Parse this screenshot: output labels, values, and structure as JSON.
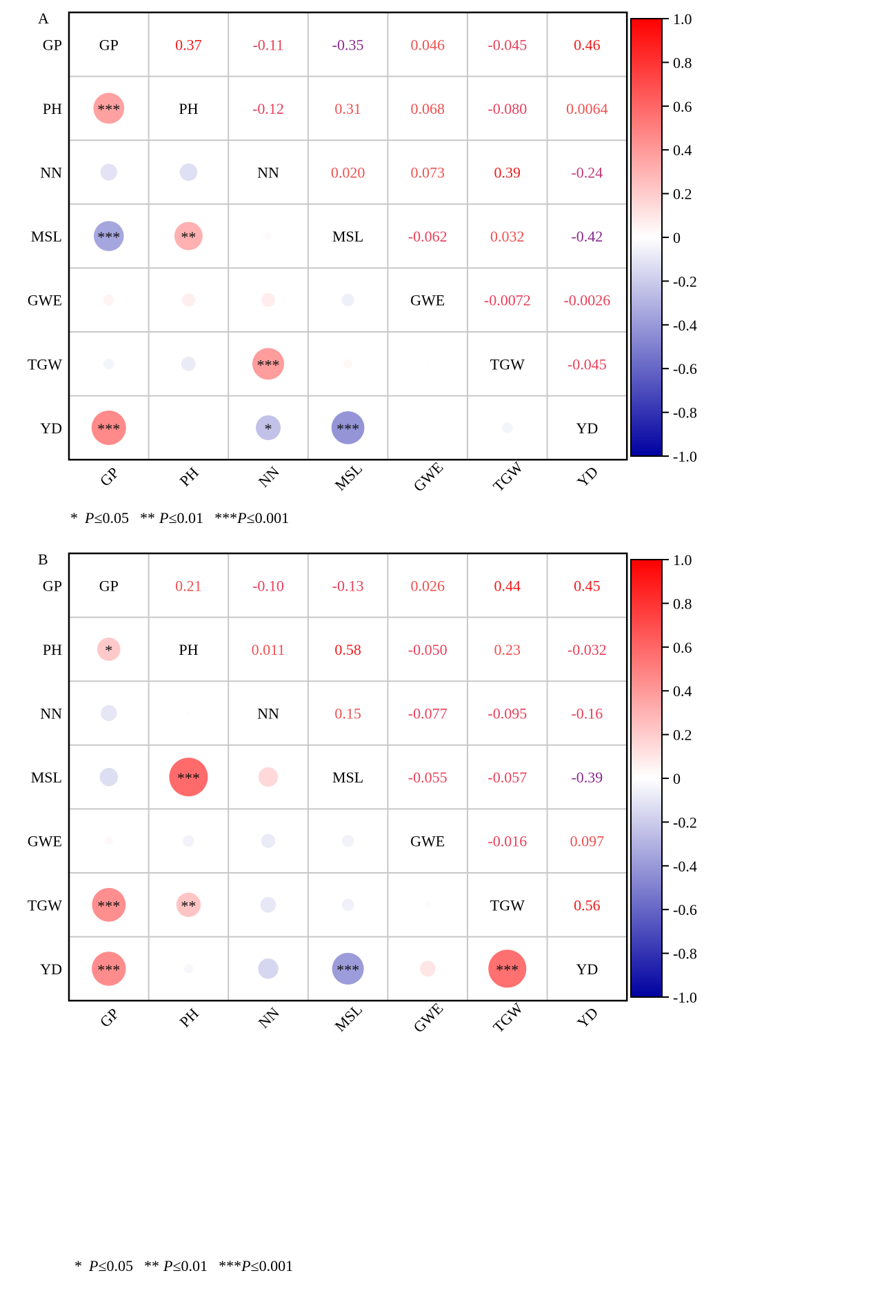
{
  "panels": [
    {
      "label": "A",
      "footnote": {
        "star1": "*",
        "p1": "P",
        "t1": "≤0.05",
        "star2": "**",
        "p2": "P",
        "t2": "≤0.01",
        "star3": "***",
        "p3": "P",
        "t3": "≤0.001"
      }
    },
    {
      "label": "B",
      "footnote": {
        "star1": "*",
        "p1": "P",
        "t1": "≤0.05",
        "star2": "**",
        "p2": "P",
        "t2": "≤0.01",
        "star3": "***",
        "p3": "P",
        "t3": "≤0.001"
      }
    }
  ],
  "colors": {
    "positive": "#ff0000",
    "negative": "#0000a0",
    "zero": "#ffffff",
    "grid": "#c8c8c8",
    "frame": "#000000"
  },
  "chart_data": [
    {
      "type": "heatmap",
      "title": "A",
      "variables": [
        "GP",
        "PH",
        "NN",
        "MSL",
        "GWE",
        "TGW",
        "YD"
      ],
      "colorbar": {
        "range": [
          -1.0,
          1.0
        ],
        "ticks": [
          "1.0",
          "0.8",
          "0.6",
          "0.4",
          "0.2",
          "0",
          "-0.2",
          "-0.4",
          "-0.6",
          "-0.8",
          "-1.0"
        ]
      },
      "upper_labels": [
        [
          "",
          "0.37",
          "-0.11",
          "-0.35",
          "0.046",
          "-0.045",
          "0.46"
        ],
        [
          "",
          "",
          "-0.12",
          "0.31",
          "0.068",
          "-0.080",
          "0.0064"
        ],
        [
          "",
          "",
          "",
          "0.020",
          "0.073",
          "0.39",
          "-0.24"
        ],
        [
          "",
          "",
          "",
          "",
          "-0.062",
          "0.032",
          "-0.42"
        ],
        [
          "",
          "",
          "",
          "",
          "",
          "-0.0072",
          "-0.0026"
        ],
        [
          "",
          "",
          "",
          "",
          "",
          "",
          "-0.045"
        ],
        [
          "",
          "",
          "",
          "",
          "",
          "",
          ""
        ]
      ],
      "lower_circles": [
        {
          "row": 1,
          "col": 0,
          "r": 0.37,
          "sig": "***"
        },
        {
          "row": 2,
          "col": 0,
          "r": -0.11,
          "sig": ""
        },
        {
          "row": 2,
          "col": 1,
          "r": -0.12,
          "sig": ""
        },
        {
          "row": 3,
          "col": 0,
          "r": -0.35,
          "sig": "***"
        },
        {
          "row": 3,
          "col": 1,
          "r": 0.31,
          "sig": "**"
        },
        {
          "row": 3,
          "col": 2,
          "r": 0.02,
          "sig": ""
        },
        {
          "row": 4,
          "col": 0,
          "r": 0.046,
          "sig": ""
        },
        {
          "row": 4,
          "col": 1,
          "r": 0.068,
          "sig": ""
        },
        {
          "row": 4,
          "col": 2,
          "r": 0.073,
          "sig": ""
        },
        {
          "row": 4,
          "col": 3,
          "r": -0.062,
          "sig": ""
        },
        {
          "row": 5,
          "col": 0,
          "r": -0.045,
          "sig": ""
        },
        {
          "row": 5,
          "col": 1,
          "r": -0.08,
          "sig": ""
        },
        {
          "row": 5,
          "col": 2,
          "r": 0.39,
          "sig": "***"
        },
        {
          "row": 5,
          "col": 3,
          "r": 0.032,
          "sig": ""
        },
        {
          "row": 5,
          "col": 4,
          "r": -0.0072,
          "sig": ""
        },
        {
          "row": 6,
          "col": 0,
          "r": 0.46,
          "sig": "***"
        },
        {
          "row": 6,
          "col": 1,
          "r": 0.0064,
          "sig": ""
        },
        {
          "row": 6,
          "col": 2,
          "r": -0.24,
          "sig": "*"
        },
        {
          "row": 6,
          "col": 3,
          "r": -0.42,
          "sig": "***"
        },
        {
          "row": 6,
          "col": 4,
          "r": -0.0026,
          "sig": ""
        },
        {
          "row": 6,
          "col": 5,
          "r": -0.045,
          "sig": ""
        }
      ]
    },
    {
      "type": "heatmap",
      "title": "B",
      "variables": [
        "GP",
        "PH",
        "NN",
        "MSL",
        "GWE",
        "TGW",
        "YD"
      ],
      "colorbar": {
        "range": [
          -1.0,
          1.0
        ],
        "ticks": [
          "1.0",
          "0.8",
          "0.6",
          "0.4",
          "0.2",
          "0",
          "-0.2",
          "-0.4",
          "-0.6",
          "-0.8",
          "-1.0"
        ]
      },
      "upper_labels": [
        [
          "",
          "0.21",
          "-0.10",
          "-0.13",
          "0.026",
          "0.44",
          "0.45"
        ],
        [
          "",
          "",
          "0.011",
          "0.58",
          "-0.050",
          "0.23",
          "-0.032"
        ],
        [
          "",
          "",
          "",
          "0.15",
          "-0.077",
          "-0.095",
          "-0.16"
        ],
        [
          "",
          "",
          "",
          "",
          "-0.055",
          "-0.057",
          "-0.39"
        ],
        [
          "",
          "",
          "",
          "",
          "",
          "-0.016",
          "0.097"
        ],
        [
          "",
          "",
          "",
          "",
          "",
          "",
          "0.56"
        ],
        [
          "",
          "",
          "",
          "",
          "",
          "",
          ""
        ]
      ],
      "lower_circles": [
        {
          "row": 1,
          "col": 0,
          "r": 0.21,
          "sig": "*"
        },
        {
          "row": 2,
          "col": 0,
          "r": -0.1,
          "sig": ""
        },
        {
          "row": 2,
          "col": 1,
          "r": 0.011,
          "sig": ""
        },
        {
          "row": 3,
          "col": 0,
          "r": -0.13,
          "sig": ""
        },
        {
          "row": 3,
          "col": 1,
          "r": 0.58,
          "sig": "***"
        },
        {
          "row": 3,
          "col": 2,
          "r": 0.15,
          "sig": ""
        },
        {
          "row": 4,
          "col": 0,
          "r": 0.026,
          "sig": ""
        },
        {
          "row": 4,
          "col": 1,
          "r": -0.05,
          "sig": ""
        },
        {
          "row": 4,
          "col": 2,
          "r": -0.077,
          "sig": ""
        },
        {
          "row": 4,
          "col": 3,
          "r": -0.055,
          "sig": ""
        },
        {
          "row": 5,
          "col": 0,
          "r": 0.44,
          "sig": "***"
        },
        {
          "row": 5,
          "col": 1,
          "r": 0.23,
          "sig": "**"
        },
        {
          "row": 5,
          "col": 2,
          "r": -0.095,
          "sig": ""
        },
        {
          "row": 5,
          "col": 3,
          "r": -0.057,
          "sig": ""
        },
        {
          "row": 5,
          "col": 4,
          "r": -0.016,
          "sig": ""
        },
        {
          "row": 6,
          "col": 0,
          "r": 0.45,
          "sig": "***"
        },
        {
          "row": 6,
          "col": 1,
          "r": -0.032,
          "sig": ""
        },
        {
          "row": 6,
          "col": 2,
          "r": -0.16,
          "sig": ""
        },
        {
          "row": 6,
          "col": 3,
          "r": -0.39,
          "sig": "***"
        },
        {
          "row": 6,
          "col": 4,
          "r": 0.097,
          "sig": ""
        },
        {
          "row": 6,
          "col": 5,
          "r": 0.56,
          "sig": "***"
        }
      ]
    }
  ]
}
